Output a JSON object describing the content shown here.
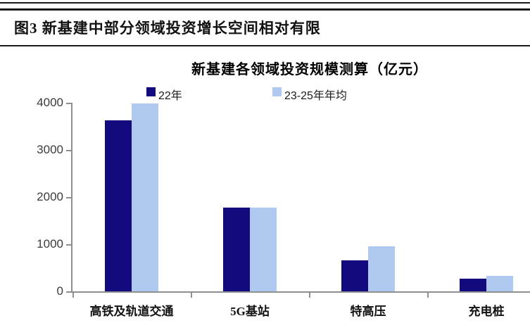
{
  "header": {
    "title": "图3  新基建中部分领域投资增长空间相对有限"
  },
  "chart_data": {
    "type": "bar",
    "title": "新基建各领域投资规模测算（亿元）",
    "categories": [
      "高铁及轨道交通",
      "5G基站",
      "特高压",
      "充电桩"
    ],
    "series": [
      {
        "name": "22年",
        "color": "#140a80",
        "values": [
          3620,
          1780,
          650,
          270
        ]
      },
      {
        "name": "23-25年年均",
        "color": "#afc9f1",
        "values": [
          3980,
          1780,
          960,
          330
        ]
      }
    ],
    "xlabel": "",
    "ylabel": "",
    "ylim": [
      0,
      4000
    ],
    "yticks": [
      0,
      1000,
      2000,
      3000,
      4000
    ],
    "grid": false,
    "legend_position": "top"
  },
  "colors": {
    "axis": "#8f8f8f",
    "header_rule": "#1b1b1b",
    "text": "#111111"
  }
}
